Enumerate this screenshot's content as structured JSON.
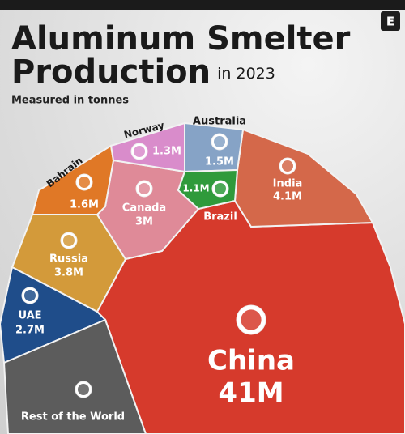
{
  "logo": "E",
  "chart_data": {
    "type": "voronoi",
    "title": "Aluminum Smelter Production",
    "subtitle": "in 2023",
    "note": "Measured in tonnes",
    "categories": [
      "China",
      "India",
      "Russia",
      "Canada",
      "UAE",
      "Bahrain",
      "Australia",
      "Norway",
      "Brazil",
      "Rest of the World"
    ],
    "values": [
      41000000,
      4100000,
      3800000,
      3000000,
      2700000,
      1600000,
      1500000,
      1300000,
      1100000,
      9900000
    ],
    "value_labels": [
      "41M",
      "4.1M",
      "3.8M",
      "3M",
      "2.7M",
      "1.6M",
      "1.5M",
      "1.3M",
      "1.1M",
      null
    ],
    "colors": [
      "#d63a2c",
      "#d4684a",
      "#d39a3a",
      "#df8a98",
      "#1f4d8a",
      "#e07826",
      "#86a3c6",
      "#d98ccb",
      "#2f9a3b",
      "#5c5c5c"
    ]
  }
}
